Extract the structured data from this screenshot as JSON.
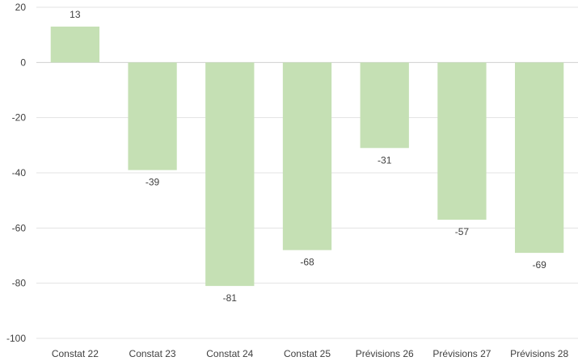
{
  "chart_data": {
    "type": "bar",
    "categories": [
      "Constat 22",
      "Constat 23",
      "Constat 24",
      "Constat 25",
      "Prévisions 26",
      "Prévisions 27",
      "Prévisions 28"
    ],
    "values": [
      13,
      -39,
      -81,
      -68,
      -31,
      -57,
      -69
    ],
    "ylim": [
      -100,
      20
    ],
    "yticks": [
      20,
      0,
      -20,
      -40,
      -60,
      -80,
      -100
    ],
    "grid": true,
    "data_labels": true,
    "bar_color": "#c5e0b4"
  }
}
